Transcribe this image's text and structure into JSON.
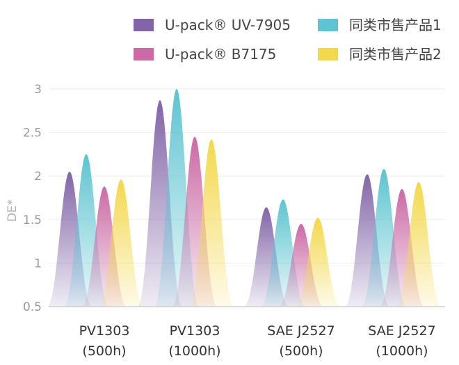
{
  "chart_data": {
    "type": "area",
    "title": "",
    "xlabel": "",
    "ylabel": "DE*",
    "ylim": [
      0.5,
      3
    ],
    "yticks": [
      "0.5",
      "1",
      "1.5",
      "2",
      "2.5",
      "3"
    ],
    "grid": true,
    "legend_position": "top",
    "categories": [
      [
        "PV1303",
        "(500h)"
      ],
      [
        "PV1303",
        "(1000h)"
      ],
      [
        "SAE J2527",
        "(500h)"
      ],
      [
        "SAE J2527",
        "(1000h)"
      ]
    ],
    "series": [
      {
        "name": "U-pack® UV-7905",
        "color": "#8165a8",
        "values": [
          2.05,
          2.87,
          1.64,
          2.02
        ]
      },
      {
        "name": "同类市售产品1",
        "color": "#5ec4d1",
        "values": [
          2.25,
          3.0,
          1.73,
          2.08
        ]
      },
      {
        "name": "U-pack® B7175",
        "color": "#cb6aa5",
        "values": [
          1.88,
          2.45,
          1.45,
          1.85
        ]
      },
      {
        "name": "同类市售产品2",
        "color": "#f3d84c",
        "values": [
          1.96,
          2.42,
          1.52,
          1.93
        ]
      }
    ]
  }
}
